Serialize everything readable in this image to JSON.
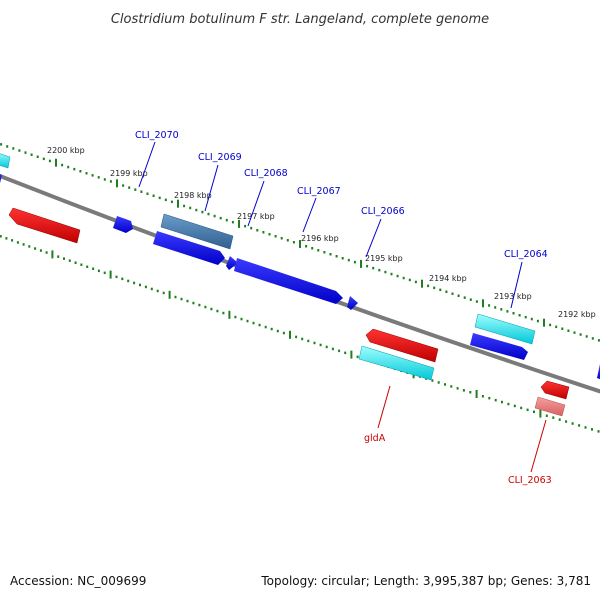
{
  "title": "Clostridium botulinum F str. Langeland, complete genome",
  "footer": {
    "accession": "Accession: NC_009699",
    "topology": "Topology: circular; Length: 3,995,387 bp; Genes: 3,781"
  },
  "colors": {
    "backbone": "#808080",
    "forward_cds": "#0000ee",
    "forward_cds_alt": "#4a7fb0",
    "reverse_cds": "#ee0000",
    "reverse_cds_light": "#f08080",
    "rna": "#00e5ee",
    "tick": "#228b22",
    "label_forward": "#0000cc",
    "label_reverse": "#cc0000"
  },
  "kbp_labels": [
    "2200 kbp",
    "2199 kbp",
    "2198 kbp",
    "2197 kbp",
    "2196 kbp",
    "2195 kbp",
    "2194 kbp",
    "2193 kbp",
    "2192 kbp"
  ],
  "genes_forward": [
    "CLI_2070",
    "CLI_2069",
    "CLI_2068",
    "CLI_2067",
    "CLI_2066",
    "CLI_2064"
  ],
  "genes_reverse": [
    "gldA",
    "CLI_2063"
  ]
}
